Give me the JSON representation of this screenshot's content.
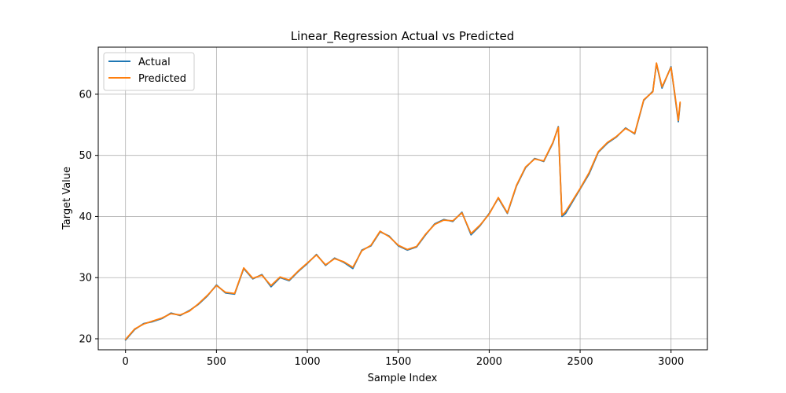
{
  "chart_data": {
    "type": "line",
    "title": "Linear_Regression Actual vs Predicted",
    "xlabel": "Sample Index",
    "ylabel": "Target Value",
    "xlim": [
      -150,
      3200
    ],
    "ylim": [
      18.2,
      67.7
    ],
    "xticks": [
      "0",
      "500",
      "1000",
      "1500",
      "2000",
      "2500",
      "3000"
    ],
    "yticks": [
      "20",
      "30",
      "40",
      "50",
      "60"
    ],
    "grid": true,
    "legend_position": "top-left",
    "x": [
      0,
      50,
      100,
      150,
      200,
      250,
      300,
      350,
      400,
      450,
      500,
      550,
      600,
      650,
      700,
      750,
      800,
      850,
      900,
      950,
      1000,
      1050,
      1100,
      1150,
      1200,
      1250,
      1300,
      1350,
      1400,
      1450,
      1500,
      1550,
      1600,
      1650,
      1700,
      1750,
      1800,
      1850,
      1900,
      1950,
      2000,
      2050,
      2100,
      2150,
      2200,
      2250,
      2300,
      2350,
      2380,
      2400,
      2420,
      2450,
      2500,
      2550,
      2600,
      2650,
      2700,
      2750,
      2800,
      2850,
      2900,
      2920,
      2950,
      3000,
      3020,
      3040,
      3050
    ],
    "series": [
      {
        "name": "Actual",
        "color": "#1f77b4",
        "values": [
          19.8,
          21.5,
          22.5,
          22.8,
          23.3,
          24.2,
          23.8,
          24.6,
          25.6,
          27.0,
          28.8,
          27.5,
          27.3,
          31.5,
          29.8,
          30.5,
          28.5,
          30.0,
          29.5,
          31.0,
          32.3,
          33.8,
          32.0,
          33.2,
          32.5,
          31.5,
          34.5,
          35.2,
          37.5,
          36.8,
          35.2,
          34.5,
          35.0,
          37.0,
          38.8,
          39.5,
          39.2,
          40.7,
          37.0,
          38.5,
          40.5,
          43.0,
          40.5,
          45.0,
          48.0,
          49.5,
          49.0,
          52.0,
          54.7,
          40.0,
          40.5,
          42.0,
          44.5,
          47.0,
          50.5,
          52.0,
          53.0,
          54.5,
          53.5,
          59.0,
          60.5,
          65.0,
          61.0,
          64.5,
          60.0,
          55.5,
          58.5
        ]
      },
      {
        "name": "Predicted",
        "color": "#ff7f0e",
        "values": [
          19.9,
          21.6,
          22.4,
          22.9,
          23.4,
          24.1,
          23.9,
          24.5,
          25.7,
          27.1,
          28.7,
          27.6,
          27.4,
          31.6,
          29.9,
          30.4,
          28.7,
          30.1,
          29.6,
          31.1,
          32.4,
          33.7,
          32.1,
          33.1,
          32.6,
          31.7,
          34.4,
          35.3,
          37.6,
          36.7,
          35.3,
          34.6,
          35.1,
          37.1,
          38.7,
          39.4,
          39.3,
          40.6,
          37.2,
          38.6,
          40.4,
          43.1,
          40.6,
          45.1,
          48.1,
          49.4,
          49.1,
          52.1,
          54.6,
          40.2,
          40.8,
          42.2,
          44.6,
          47.2,
          50.6,
          52.1,
          53.1,
          54.4,
          53.6,
          59.1,
          60.4,
          65.1,
          61.2,
          64.4,
          60.2,
          55.7,
          58.7
        ]
      }
    ]
  }
}
